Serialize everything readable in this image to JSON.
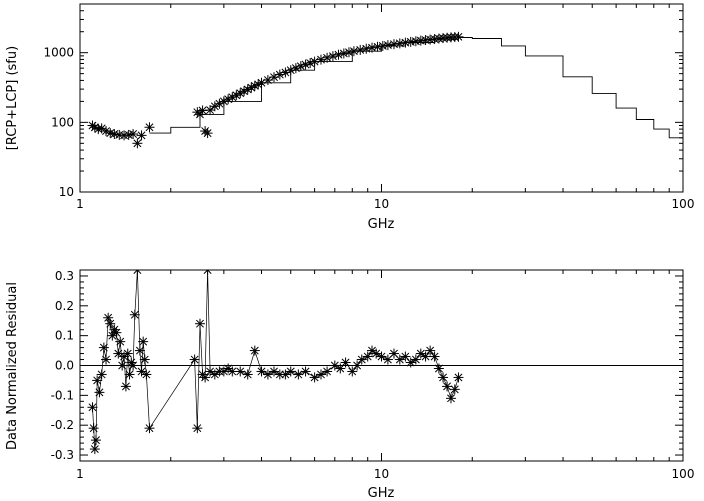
{
  "chart_data": [
    {
      "type": "scatter",
      "xscale": "log",
      "yscale": "log",
      "xlim": [
        1,
        100
      ],
      "ylim": [
        10,
        5000
      ],
      "xlabel": "GHz",
      "ylabel": "[RCP+LCP] (sfu)",
      "x_ticks": [
        {
          "value": 1,
          "label": "1"
        },
        {
          "value": 10,
          "label": "10"
        },
        {
          "value": 100,
          "label": "100"
        }
      ],
      "y_ticks": [
        {
          "value": 10,
          "label": "10"
        },
        {
          "value": 100,
          "label": "100"
        },
        {
          "value": 1000,
          "label": "1000"
        }
      ],
      "series": [
        {
          "marker": "asterisk",
          "points": [
            [
              1.1,
              90
            ],
            [
              1.12,
              85
            ],
            [
              1.15,
              80
            ],
            [
              1.18,
              82
            ],
            [
              1.22,
              75
            ],
            [
              1.26,
              70
            ],
            [
              1.3,
              68
            ],
            [
              1.35,
              66
            ],
            [
              1.4,
              65
            ],
            [
              1.45,
              66
            ],
            [
              1.5,
              68
            ],
            [
              1.55,
              50
            ],
            [
              1.6,
              65
            ],
            [
              1.7,
              85
            ],
            [
              2.45,
              140
            ],
            [
              2.5,
              130
            ],
            [
              2.55,
              148
            ],
            [
              2.6,
              75
            ],
            [
              2.65,
              70
            ],
            [
              2.7,
              150
            ],
            [
              2.8,
              170
            ],
            [
              2.9,
              185
            ],
            [
              3.0,
              200
            ],
            [
              3.1,
              215
            ],
            [
              3.2,
              230
            ],
            [
              3.3,
              245
            ],
            [
              3.4,
              262
            ],
            [
              3.5,
              280
            ],
            [
              3.6,
              297
            ],
            [
              3.7,
              315
            ],
            [
              3.8,
              335
            ],
            [
              3.9,
              350
            ],
            [
              4.0,
              370
            ],
            [
              4.2,
              405
            ],
            [
              4.4,
              445
            ],
            [
              4.6,
              485
            ],
            [
              4.8,
              520
            ],
            [
              5.0,
              560
            ],
            [
              5.2,
              600
            ],
            [
              5.4,
              640
            ],
            [
              5.6,
              675
            ],
            [
              5.8,
              710
            ],
            [
              6.0,
              745
            ],
            [
              6.3,
              795
            ],
            [
              6.6,
              845
            ],
            [
              6.9,
              890
            ],
            [
              7.2,
              935
            ],
            [
              7.5,
              975
            ],
            [
              7.8,
              1015
            ],
            [
              8.1,
              1050
            ],
            [
              8.5,
              1095
            ],
            [
              8.9,
              1140
            ],
            [
              9.3,
              1180
            ],
            [
              9.7,
              1215
            ],
            [
              10.1,
              1250
            ],
            [
              10.5,
              1285
            ],
            [
              11.0,
              1325
            ],
            [
              11.5,
              1360
            ],
            [
              12.0,
              1395
            ],
            [
              12.5,
              1430
            ],
            [
              13.0,
              1460
            ],
            [
              13.5,
              1490
            ],
            [
              14.0,
              1520
            ],
            [
              14.5,
              1545
            ],
            [
              15.0,
              1570
            ],
            [
              15.5,
              1595
            ],
            [
              16.0,
              1620
            ],
            [
              16.5,
              1640
            ],
            [
              17.0,
              1660
            ],
            [
              17.5,
              1675
            ],
            [
              18.0,
              1690
            ]
          ]
        },
        {
          "style": "line",
          "points": [
            [
              1.7,
              70
            ],
            [
              2.0,
              85
            ],
            [
              2.5,
              130
            ],
            [
              3.0,
              200
            ],
            [
              4.0,
              370
            ],
            [
              5.0,
              560
            ],
            [
              6.0,
              745
            ],
            [
              8.0,
              1050
            ],
            [
              10.0,
              1250
            ],
            [
              12.0,
              1400
            ],
            [
              15.0,
              1560
            ],
            [
              18.0,
              1650
            ],
            [
              20.0,
              1600
            ],
            [
              25.0,
              1250
            ],
            [
              30.0,
              900
            ],
            [
              40.0,
              450
            ],
            [
              50.0,
              260
            ],
            [
              60.0,
              160
            ],
            [
              70.0,
              110
            ],
            [
              80.0,
              80
            ],
            [
              90.0,
              60
            ],
            [
              100.0,
              48
            ]
          ]
        }
      ]
    },
    {
      "type": "scatter",
      "xscale": "log",
      "xlim": [
        1,
        100
      ],
      "ylim": [
        -0.32,
        0.32
      ],
      "xlabel": "GHz",
      "ylabel": "Data Normalized Residual",
      "reference_line": 0.0,
      "x_ticks": [
        {
          "value": 1,
          "label": "1"
        },
        {
          "value": 10,
          "label": "10"
        },
        {
          "value": 100,
          "label": "100"
        }
      ],
      "y_ticks": [
        {
          "value": -0.3,
          "label": "-0.3"
        },
        {
          "value": -0.2,
          "label": "-0.2"
        },
        {
          "value": -0.1,
          "label": "-0.1"
        },
        {
          "value": 0.0,
          "label": "0.0"
        },
        {
          "value": 0.1,
          "label": "0.1"
        },
        {
          "value": 0.2,
          "label": "0.2"
        },
        {
          "value": 0.3,
          "label": "0.3"
        }
      ],
      "series": [
        {
          "marker": "asterisk",
          "connected": true,
          "points": [
            [
              1.1,
              -0.14
            ],
            [
              1.11,
              -0.21
            ],
            [
              1.12,
              -0.28
            ],
            [
              1.13,
              -0.25
            ],
            [
              1.14,
              -0.05
            ],
            [
              1.16,
              -0.09
            ],
            [
              1.18,
              -0.03
            ],
            [
              1.2,
              0.06
            ],
            [
              1.22,
              0.02
            ],
            [
              1.24,
              0.16
            ],
            [
              1.26,
              0.14
            ],
            [
              1.28,
              0.1
            ],
            [
              1.3,
              0.12
            ],
            [
              1.32,
              0.11
            ],
            [
              1.34,
              0.04
            ],
            [
              1.36,
              0.08
            ],
            [
              1.38,
              0.0
            ],
            [
              1.4,
              0.03
            ],
            [
              1.42,
              -0.07
            ],
            [
              1.44,
              0.04
            ],
            [
              1.46,
              -0.03
            ],
            [
              1.48,
              0.01
            ],
            [
              1.5,
              0.0
            ],
            [
              1.52,
              0.17
            ],
            [
              1.55,
              0.32
            ],
            [
              1.58,
              0.05
            ],
            [
              1.6,
              -0.02
            ],
            [
              1.62,
              0.08
            ],
            [
              1.64,
              0.02
            ],
            [
              1.66,
              -0.03
            ],
            [
              1.7,
              -0.21
            ],
            [
              2.4,
              0.02
            ],
            [
              2.45,
              -0.21
            ],
            [
              2.5,
              0.14
            ],
            [
              2.55,
              -0.03
            ],
            [
              2.6,
              -0.04
            ],
            [
              2.65,
              0.32
            ],
            [
              2.7,
              -0.02
            ],
            [
              2.8,
              -0.03
            ],
            [
              2.9,
              -0.02
            ],
            [
              3.0,
              -0.02
            ],
            [
              3.1,
              -0.01
            ],
            [
              3.2,
              -0.02
            ],
            [
              3.4,
              -0.02
            ],
            [
              3.6,
              -0.03
            ],
            [
              3.8,
              0.05
            ],
            [
              4.0,
              -0.02
            ],
            [
              4.2,
              -0.03
            ],
            [
              4.4,
              -0.02
            ],
            [
              4.6,
              -0.03
            ],
            [
              4.8,
              -0.03
            ],
            [
              5.0,
              -0.02
            ],
            [
              5.3,
              -0.03
            ],
            [
              5.6,
              -0.02
            ],
            [
              6.0,
              -0.04
            ],
            [
              6.3,
              -0.03
            ],
            [
              6.6,
              -0.02
            ],
            [
              7.0,
              0.0
            ],
            [
              7.3,
              -0.01
            ],
            [
              7.6,
              0.01
            ],
            [
              8.0,
              -0.02
            ],
            [
              8.3,
              0.0
            ],
            [
              8.6,
              0.02
            ],
            [
              9.0,
              0.03
            ],
            [
              9.3,
              0.05
            ],
            [
              9.6,
              0.04
            ],
            [
              10.0,
              0.03
            ],
            [
              10.5,
              0.02
            ],
            [
              11.0,
              0.04
            ],
            [
              11.5,
              0.02
            ],
            [
              12.0,
              0.03
            ],
            [
              12.5,
              0.01
            ],
            [
              13.0,
              0.02
            ],
            [
              13.5,
              0.04
            ],
            [
              14.0,
              0.03
            ],
            [
              14.5,
              0.05
            ],
            [
              15.0,
              0.03
            ],
            [
              15.5,
              -0.01
            ],
            [
              16.0,
              -0.04
            ],
            [
              16.5,
              -0.07
            ],
            [
              17.0,
              -0.11
            ],
            [
              17.5,
              -0.08
            ],
            [
              18.0,
              -0.04
            ]
          ]
        }
      ]
    }
  ]
}
